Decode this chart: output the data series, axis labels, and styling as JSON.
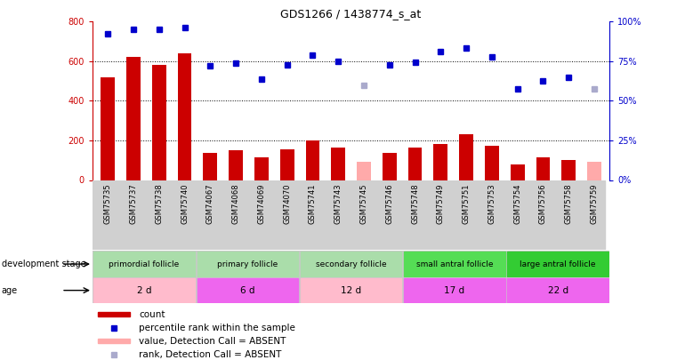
{
  "title": "GDS1266 / 1438774_s_at",
  "samples": [
    "GSM75735",
    "GSM75737",
    "GSM75738",
    "GSM75740",
    "GSM74067",
    "GSM74068",
    "GSM74069",
    "GSM74070",
    "GSM75741",
    "GSM75743",
    "GSM75745",
    "GSM75746",
    "GSM75748",
    "GSM75749",
    "GSM75751",
    "GSM75753",
    "GSM75754",
    "GSM75756",
    "GSM75758",
    "GSM75759"
  ],
  "count_values": [
    520,
    620,
    580,
    640,
    135,
    150,
    115,
    155,
    200,
    165,
    null,
    135,
    165,
    180,
    230,
    175,
    80,
    115,
    100,
    null
  ],
  "count_absent": [
    false,
    false,
    false,
    false,
    false,
    false,
    false,
    false,
    false,
    false,
    true,
    false,
    false,
    false,
    false,
    false,
    false,
    false,
    false,
    true
  ],
  "count_absent_values": [
    null,
    null,
    null,
    null,
    null,
    null,
    null,
    null,
    null,
    null,
    90,
    null,
    null,
    null,
    null,
    null,
    null,
    null,
    null,
    90
  ],
  "rank_values": [
    740,
    760,
    760,
    770,
    575,
    590,
    510,
    580,
    630,
    600,
    null,
    580,
    595,
    650,
    665,
    620,
    460,
    500,
    520,
    null
  ],
  "rank_absent": [
    false,
    false,
    false,
    false,
    false,
    false,
    false,
    false,
    false,
    false,
    true,
    false,
    false,
    false,
    false,
    false,
    false,
    false,
    false,
    true
  ],
  "rank_absent_values": [
    null,
    null,
    null,
    null,
    null,
    null,
    null,
    null,
    null,
    null,
    480,
    null,
    null,
    null,
    null,
    null,
    null,
    null,
    null,
    460
  ],
  "groups": [
    {
      "label": "primordial follicle",
      "start": 0,
      "end": 4,
      "color": "#66CC66"
    },
    {
      "label": "primary follicle",
      "start": 4,
      "end": 8,
      "color": "#66CC66"
    },
    {
      "label": "secondary follicle",
      "start": 8,
      "end": 12,
      "color": "#66CC66"
    },
    {
      "label": "small antral follicle",
      "start": 12,
      "end": 16,
      "color": "#55DD55"
    },
    {
      "label": "large antral follicle",
      "start": 16,
      "end": 20,
      "color": "#44DD44"
    }
  ],
  "group_colors": [
    "#AADDAA",
    "#AADDAA",
    "#AADDAA",
    "#66DD66",
    "#33CC33"
  ],
  "ylim_left": [
    0,
    800
  ],
  "ylim_right": [
    0,
    100
  ],
  "yticks_left": [
    0,
    200,
    400,
    600,
    800
  ],
  "yticks_right": [
    0,
    25,
    50,
    75,
    100
  ],
  "bar_color": "#CC0000",
  "bar_absent_color": "#FFAAAA",
  "dot_color": "#0000CC",
  "dot_absent_color": "#AAAACC",
  "group_row_bg": "#C8C8C8",
  "age_row_bg": "#C8C8C8",
  "age_colors": [
    "#FFBBCC",
    "#EE66EE",
    "#FFBBCC",
    "#EE66EE",
    "#EE66EE"
  ],
  "legend_items": [
    {
      "color": "#CC0000",
      "type": "rect",
      "label": "count"
    },
    {
      "color": "#0000CC",
      "type": "rect",
      "label": "percentile rank within the sample"
    },
    {
      "color": "#FFAAAA",
      "type": "rect",
      "label": "value, Detection Call = ABSENT"
    },
    {
      "color": "#AAAACC",
      "type": "rect",
      "label": "rank, Detection Call = ABSENT"
    }
  ]
}
